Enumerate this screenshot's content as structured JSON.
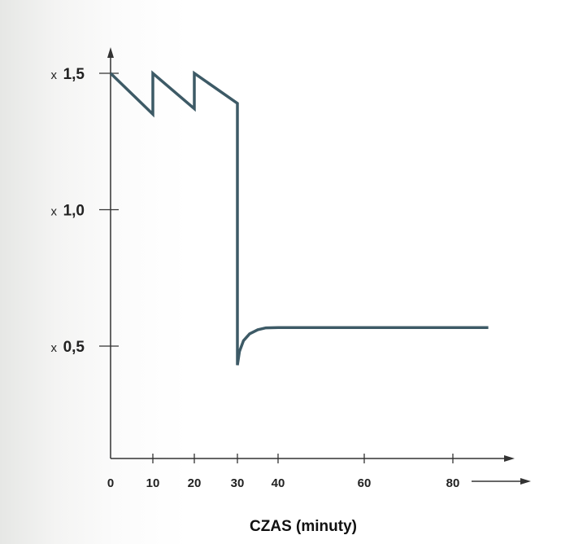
{
  "chart_data": {
    "type": "line",
    "title": "",
    "xlabel": "CZAS (minuty)",
    "ylabel": "",
    "x_ticks": [
      {
        "value": 0,
        "label": "0"
      },
      {
        "value": 10,
        "label": "10"
      },
      {
        "value": 20,
        "label": "20"
      },
      {
        "value": 30,
        "label": "30"
      },
      {
        "value": 40,
        "label": "40"
      },
      {
        "value": 60,
        "label": "60"
      },
      {
        "value": 80,
        "label": "80"
      }
    ],
    "y_ticks": [
      {
        "value": 1.5,
        "prefix": "x",
        "label": "1,5"
      },
      {
        "value": 1.0,
        "prefix": "x",
        "label": "1,0"
      },
      {
        "value": 0.5,
        "prefix": "x",
        "label": "0,5"
      }
    ],
    "series": [
      {
        "color": "#3d5a66",
        "points": [
          [
            0,
            1.5
          ],
          [
            10,
            1.35
          ],
          [
            10,
            1.5
          ],
          [
            20,
            1.37
          ],
          [
            20,
            1.5
          ],
          [
            30,
            1.39
          ],
          [
            30,
            0.43
          ],
          [
            30.5,
            0.48
          ],
          [
            31.5,
            0.52
          ],
          [
            33,
            0.545
          ],
          [
            35,
            0.56
          ],
          [
            37,
            0.567
          ],
          [
            40,
            0.568
          ],
          [
            60,
            0.568
          ],
          [
            80,
            0.568
          ],
          [
            88,
            0.568
          ]
        ]
      }
    ],
    "grid": false,
    "legend": "none"
  }
}
